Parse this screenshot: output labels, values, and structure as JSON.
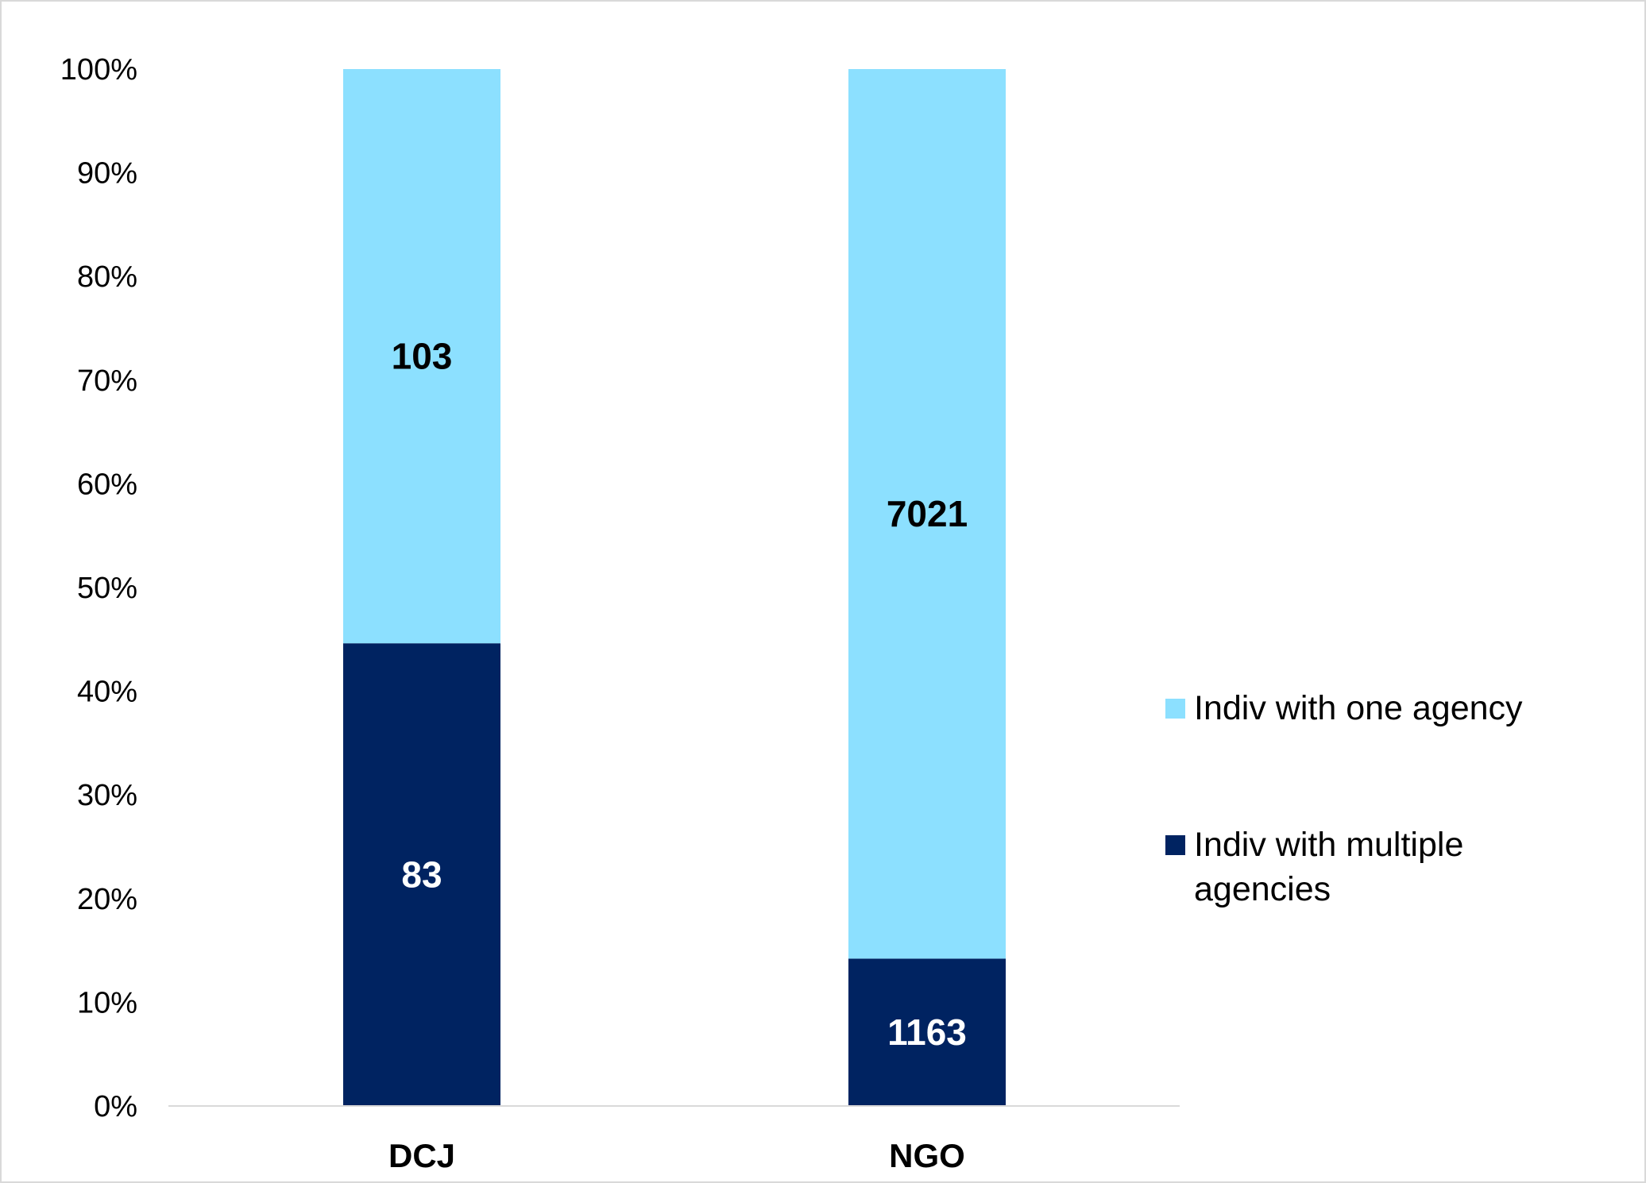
{
  "chart_data": {
    "type": "bar",
    "stacked": "percent",
    "categories": [
      "DCJ",
      "NGO"
    ],
    "series": [
      {
        "name": "Indiv with multiple agencies",
        "values": [
          83,
          1163
        ],
        "color": "#002361",
        "label_color": "#ffffff"
      },
      {
        "name": "Indiv with one agency",
        "values": [
          103,
          7021
        ],
        "color": "#8ce0ff",
        "label_color": "#000000"
      }
    ],
    "y_ticks": [
      "0%",
      "10%",
      "20%",
      "30%",
      "40%",
      "50%",
      "60%",
      "70%",
      "80%",
      "90%",
      "100%"
    ],
    "ylim": [
      0,
      100
    ],
    "legend_placement": "right",
    "legend": [
      {
        "series": 1,
        "lines": [
          "Indiv with one agency"
        ]
      },
      {
        "series": 0,
        "lines": [
          "Indiv with multiple",
          "agencies"
        ]
      }
    ],
    "grid": false
  }
}
